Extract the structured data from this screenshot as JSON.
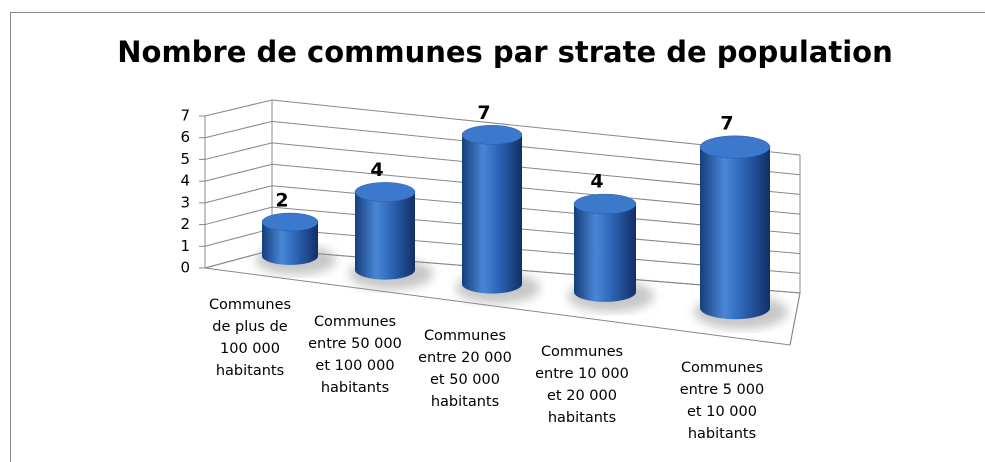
{
  "chart_data": {
    "type": "bar3d",
    "title": "Nombre de communes par strate de population",
    "categories": [
      "Communes\nde plus de\n100 000\nhabitants",
      "Communes\nentre 50 000\net 100 000\nhabitants",
      "Communes\nentre 20 000\net 50 000\nhabitants",
      "Communes\nentre 10 000\net 20 000\nhabitants",
      "Communes\nentre 5 000\net 10 000\nhabitants"
    ],
    "values": [
      2,
      4,
      7,
      4,
      7
    ],
    "color": "#2e6bc4",
    "ylim": [
      0,
      7
    ],
    "yticks": [
      0,
      1,
      2,
      3,
      4,
      5,
      6,
      7
    ],
    "grid": true
  }
}
